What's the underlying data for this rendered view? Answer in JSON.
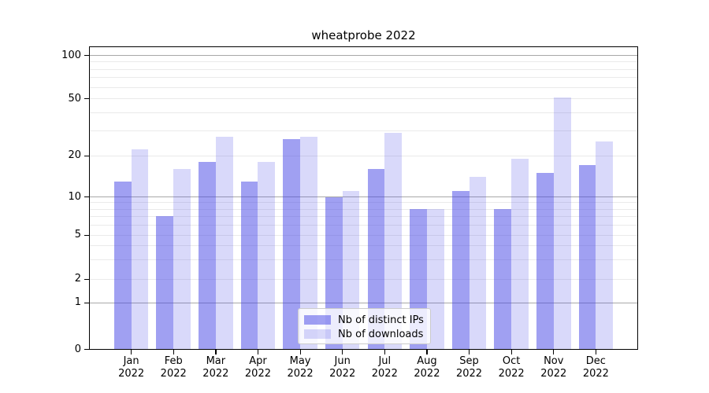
{
  "title": "wheatprobe 2022",
  "chart_data": {
    "type": "bar",
    "title": "wheatprobe 2022",
    "categories": [
      "Jan 2022",
      "Feb 2022",
      "Mar 2022",
      "Apr 2022",
      "May 2022",
      "Jun 2022",
      "Jul 2022",
      "Aug 2022",
      "Sep 2022",
      "Oct 2022",
      "Nov 2022",
      "Dec 2022"
    ],
    "series": [
      {
        "name": "Nb of distinct IPs",
        "color": "#4141e6",
        "alpha": 0.5,
        "values": [
          13,
          7,
          18,
          13,
          26,
          10,
          16,
          8,
          11,
          8,
          15,
          17
        ]
      },
      {
        "name": "Nb of downloads",
        "color": "#4141e6",
        "alpha": 0.2,
        "values": [
          22,
          16,
          27,
          18,
          27,
          11,
          29,
          8,
          14,
          19,
          51,
          25
        ]
      }
    ],
    "xlabel": "",
    "ylabel": "",
    "yscale": "symlog",
    "ylim": [
      0,
      110
    ],
    "ytick_values": [
      100,
      50,
      20,
      10,
      5,
      2,
      1,
      0
    ],
    "ytick_labels": [
      "100",
      "50",
      "20",
      "10",
      "5",
      "2",
      "1",
      "0"
    ],
    "grid": true,
    "legend_position": "lower center"
  },
  "legend": {
    "items": [
      {
        "label": "Nb of distinct IPs"
      },
      {
        "label": "Nb of downloads"
      }
    ]
  },
  "colors": {
    "background": "#ffffff",
    "bar_base": "#4141e6",
    "bar_dark_on_white": "#a0a0f2",
    "bar_light_on_white": "#d9d9fa",
    "grid_minor": "#eaeaea",
    "grid_major": "#a8a8a8",
    "spine": "#000000",
    "text": "#000000",
    "legend_border": "#cccccc"
  }
}
